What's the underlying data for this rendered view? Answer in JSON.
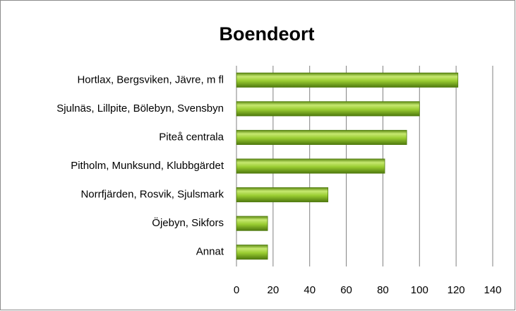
{
  "chart_data": {
    "type": "barh",
    "title": "Boendeort",
    "categories": [
      "Hortlax, Bergsviken, Jävre, m fl",
      "Sjulnäs, Lillpite, Bölebyn, Svensbyn",
      "Piteå centrala",
      "Pitholm, Munksund, Klubbgärdet",
      "Norrfjärden, Rosvik, Sjulsmark",
      "Öjebyn, Sikfors",
      "Annat"
    ],
    "values": [
      121,
      100,
      93,
      81,
      50,
      17,
      17
    ],
    "color": "#8cbf2a",
    "xlim": [
      0,
      140
    ],
    "xticks": [
      0,
      20,
      40,
      60,
      80,
      100,
      120,
      140
    ],
    "grid": true
  }
}
